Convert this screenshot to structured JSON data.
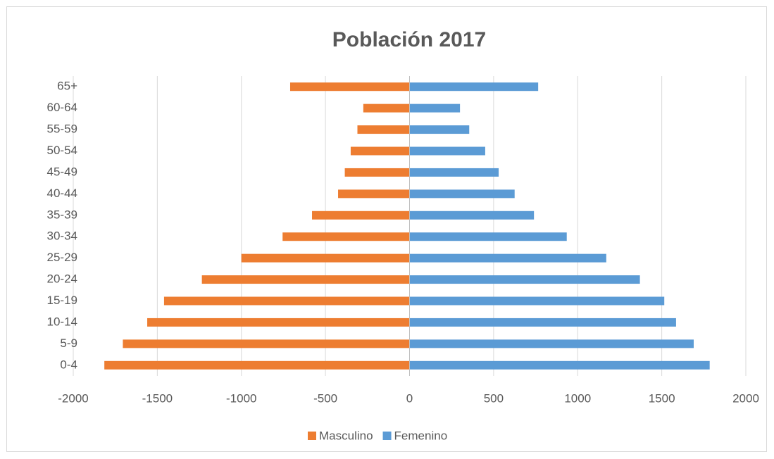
{
  "chart_data": {
    "type": "bar",
    "orientation": "horizontal",
    "title": "Población 2017",
    "categories": [
      "0-4",
      "5-9",
      "10-14",
      "15-19",
      "20-24",
      "25-29",
      "30-34",
      "35-39",
      "40-44",
      "45-49",
      "50-54",
      "55-59",
      "60-64",
      "65+"
    ],
    "series": [
      {
        "name": "Masculino",
        "color": "#ed7d31",
        "values": [
          -1815,
          -1705,
          -1560,
          -1460,
          -1235,
          -1000,
          -755,
          -580,
          -425,
          -385,
          -350,
          -310,
          -275,
          -710
        ]
      },
      {
        "name": "Femenino",
        "color": "#5b9bd5",
        "values": [
          1785,
          1690,
          1585,
          1515,
          1370,
          1170,
          935,
          740,
          625,
          530,
          450,
          355,
          300,
          765
        ]
      }
    ],
    "xlim": [
      -2000,
      2000
    ],
    "xticks": [
      -2000,
      -1500,
      -1000,
      -500,
      0,
      500,
      1000,
      1500,
      2000
    ],
    "grid": true,
    "legend": "bottom"
  }
}
